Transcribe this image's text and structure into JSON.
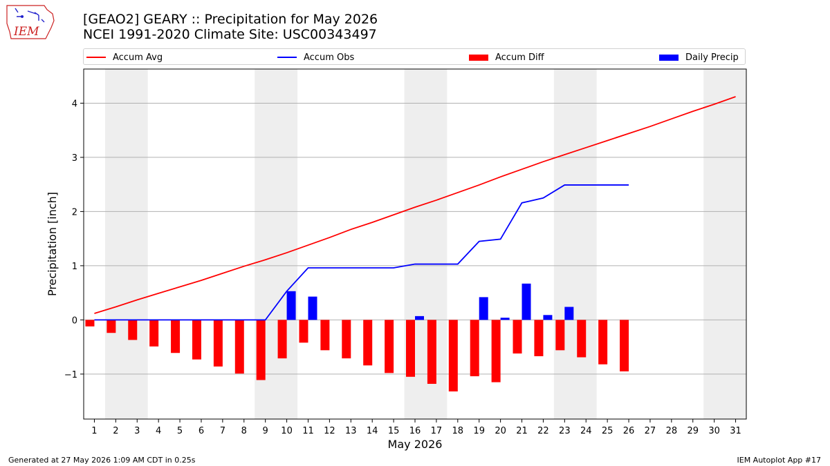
{
  "header": {
    "title_line1": "[GEAO2] GEARY :: Precipitation for May 2026",
    "title_line2": "NCEI 1991-2020 Climate Site: USC00343497"
  },
  "logo": {
    "text": "IEM",
    "color": "#cc2222"
  },
  "footer": {
    "generated": "Generated at 27 May 2026 1:09 AM CDT in 0.25s",
    "app": "IEM Autoplot App #17"
  },
  "legend": {
    "accum_avg": "Accum Avg",
    "accum_obs": "Accum Obs",
    "accum_diff": "Accum Diff",
    "daily_precip": "Daily Precip"
  },
  "colors": {
    "avg": "#ff0000",
    "obs": "#0000ff",
    "diff": "#ff0000",
    "daily": "#0000ff",
    "weekend": "#eeeeee",
    "grid": "#b0b0b0"
  },
  "chart_data": {
    "type": "bar",
    "xlabel": "May 2026",
    "ylabel": "Precipitation [inch]",
    "ylim": [
      -1.83,
      4.63
    ],
    "xlim": [
      0.5,
      31.5
    ],
    "yticks": [
      -1,
      0,
      1,
      2,
      3,
      4
    ],
    "ytick_labels": [
      "−1",
      "0",
      "1",
      "2",
      "3",
      "4"
    ],
    "grid": "horizontal",
    "legend_placement": "top",
    "weekend_spans": [
      [
        1.5,
        3.5
      ],
      [
        8.5,
        10.5
      ],
      [
        15.5,
        17.5
      ],
      [
        22.5,
        24.5
      ],
      [
        29.5,
        31.5
      ]
    ],
    "days": [
      1,
      2,
      3,
      4,
      5,
      6,
      7,
      8,
      9,
      10,
      11,
      12,
      13,
      14,
      15,
      16,
      17,
      18,
      19,
      20,
      21,
      22,
      23,
      24,
      25,
      26,
      27,
      28,
      29,
      30,
      31
    ],
    "accum_avg": [
      0.12,
      0.24,
      0.37,
      0.49,
      0.61,
      0.73,
      0.86,
      0.99,
      1.11,
      1.24,
      1.38,
      1.52,
      1.67,
      1.8,
      1.94,
      2.08,
      2.21,
      2.35,
      2.49,
      2.64,
      2.78,
      2.92,
      3.05,
      3.18,
      3.31,
      3.44,
      3.57,
      3.71,
      3.85,
      3.98,
      4.12
    ],
    "accum_obs": [
      0.0,
      0.0,
      0.0,
      0.0,
      0.0,
      0.0,
      0.0,
      0.0,
      0.0,
      0.53,
      0.96,
      0.96,
      0.96,
      0.96,
      0.96,
      1.03,
      1.03,
      1.03,
      1.45,
      1.49,
      2.16,
      2.25,
      2.49,
      2.49,
      2.49,
      2.49
    ],
    "accum_diff": [
      -0.12,
      -0.24,
      -0.37,
      -0.49,
      -0.61,
      -0.73,
      -0.86,
      -0.99,
      -1.11,
      -0.71,
      -0.42,
      -0.56,
      -0.71,
      -0.84,
      -0.98,
      -1.05,
      -1.18,
      -1.32,
      -1.04,
      -1.15,
      -0.62,
      -0.67,
      -0.56,
      -0.69,
      -0.82,
      -0.95
    ],
    "daily_precip": [
      0,
      0,
      0,
      0,
      0,
      0,
      0,
      0,
      0,
      0.53,
      0.43,
      0,
      0,
      0,
      0,
      0.07,
      0,
      0,
      0.42,
      0.04,
      0.67,
      0.09,
      0.24,
      0,
      0,
      0
    ]
  }
}
